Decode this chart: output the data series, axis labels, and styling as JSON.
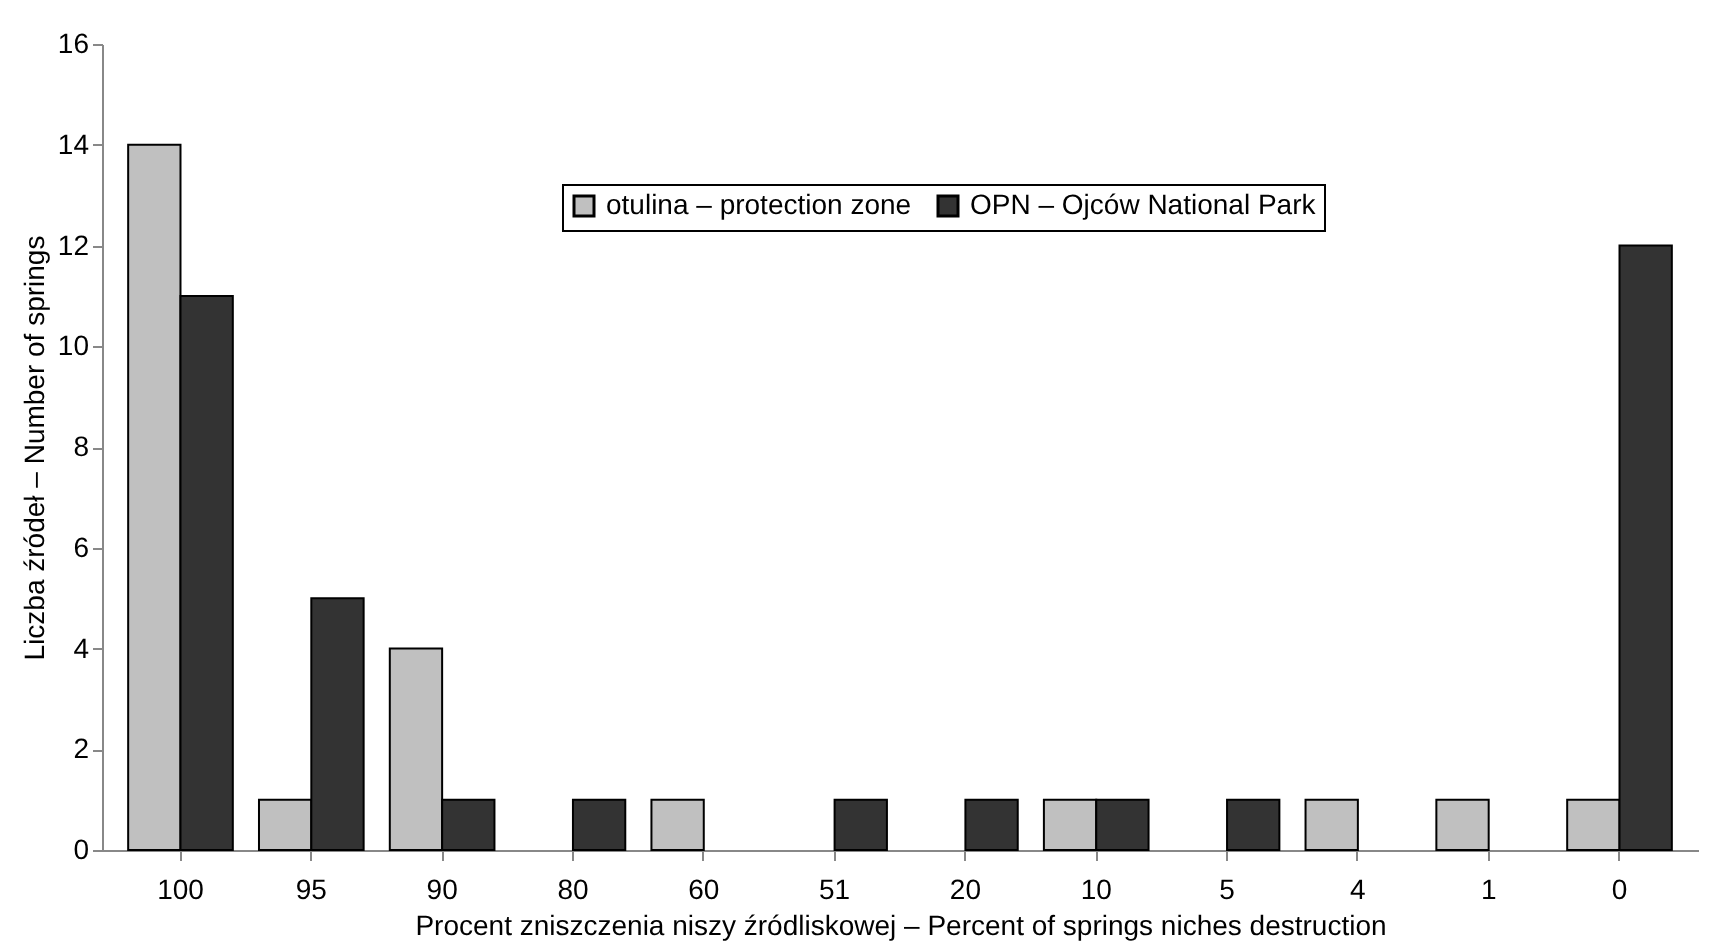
{
  "chart_data": {
    "type": "bar",
    "xlabel": "Procent zniszczenia niszy źródliskowej – Percent of springs niches destruction",
    "ylabel": "Liczba źródeł – Number of springs",
    "categories": [
      "100",
      "95",
      "90",
      "80",
      "60",
      "51",
      "20",
      "10",
      "5",
      "4",
      "1",
      "0"
    ],
    "series": [
      {
        "name": "otulina – protection zone",
        "color": "#c0c0c0",
        "values": [
          14,
          1,
          4,
          null,
          1,
          null,
          null,
          1,
          null,
          1,
          1,
          1
        ]
      },
      {
        "name": "OPN – Ojców National Park",
        "color": "#333333",
        "values": [
          11,
          5,
          1,
          1,
          null,
          1,
          1,
          1,
          1,
          null,
          null,
          12
        ]
      }
    ],
    "ylim": [
      0,
      16
    ],
    "yticks": [
      0,
      2,
      4,
      6,
      8,
      10,
      12,
      14,
      16
    ],
    "grid": false,
    "legend": "top"
  }
}
